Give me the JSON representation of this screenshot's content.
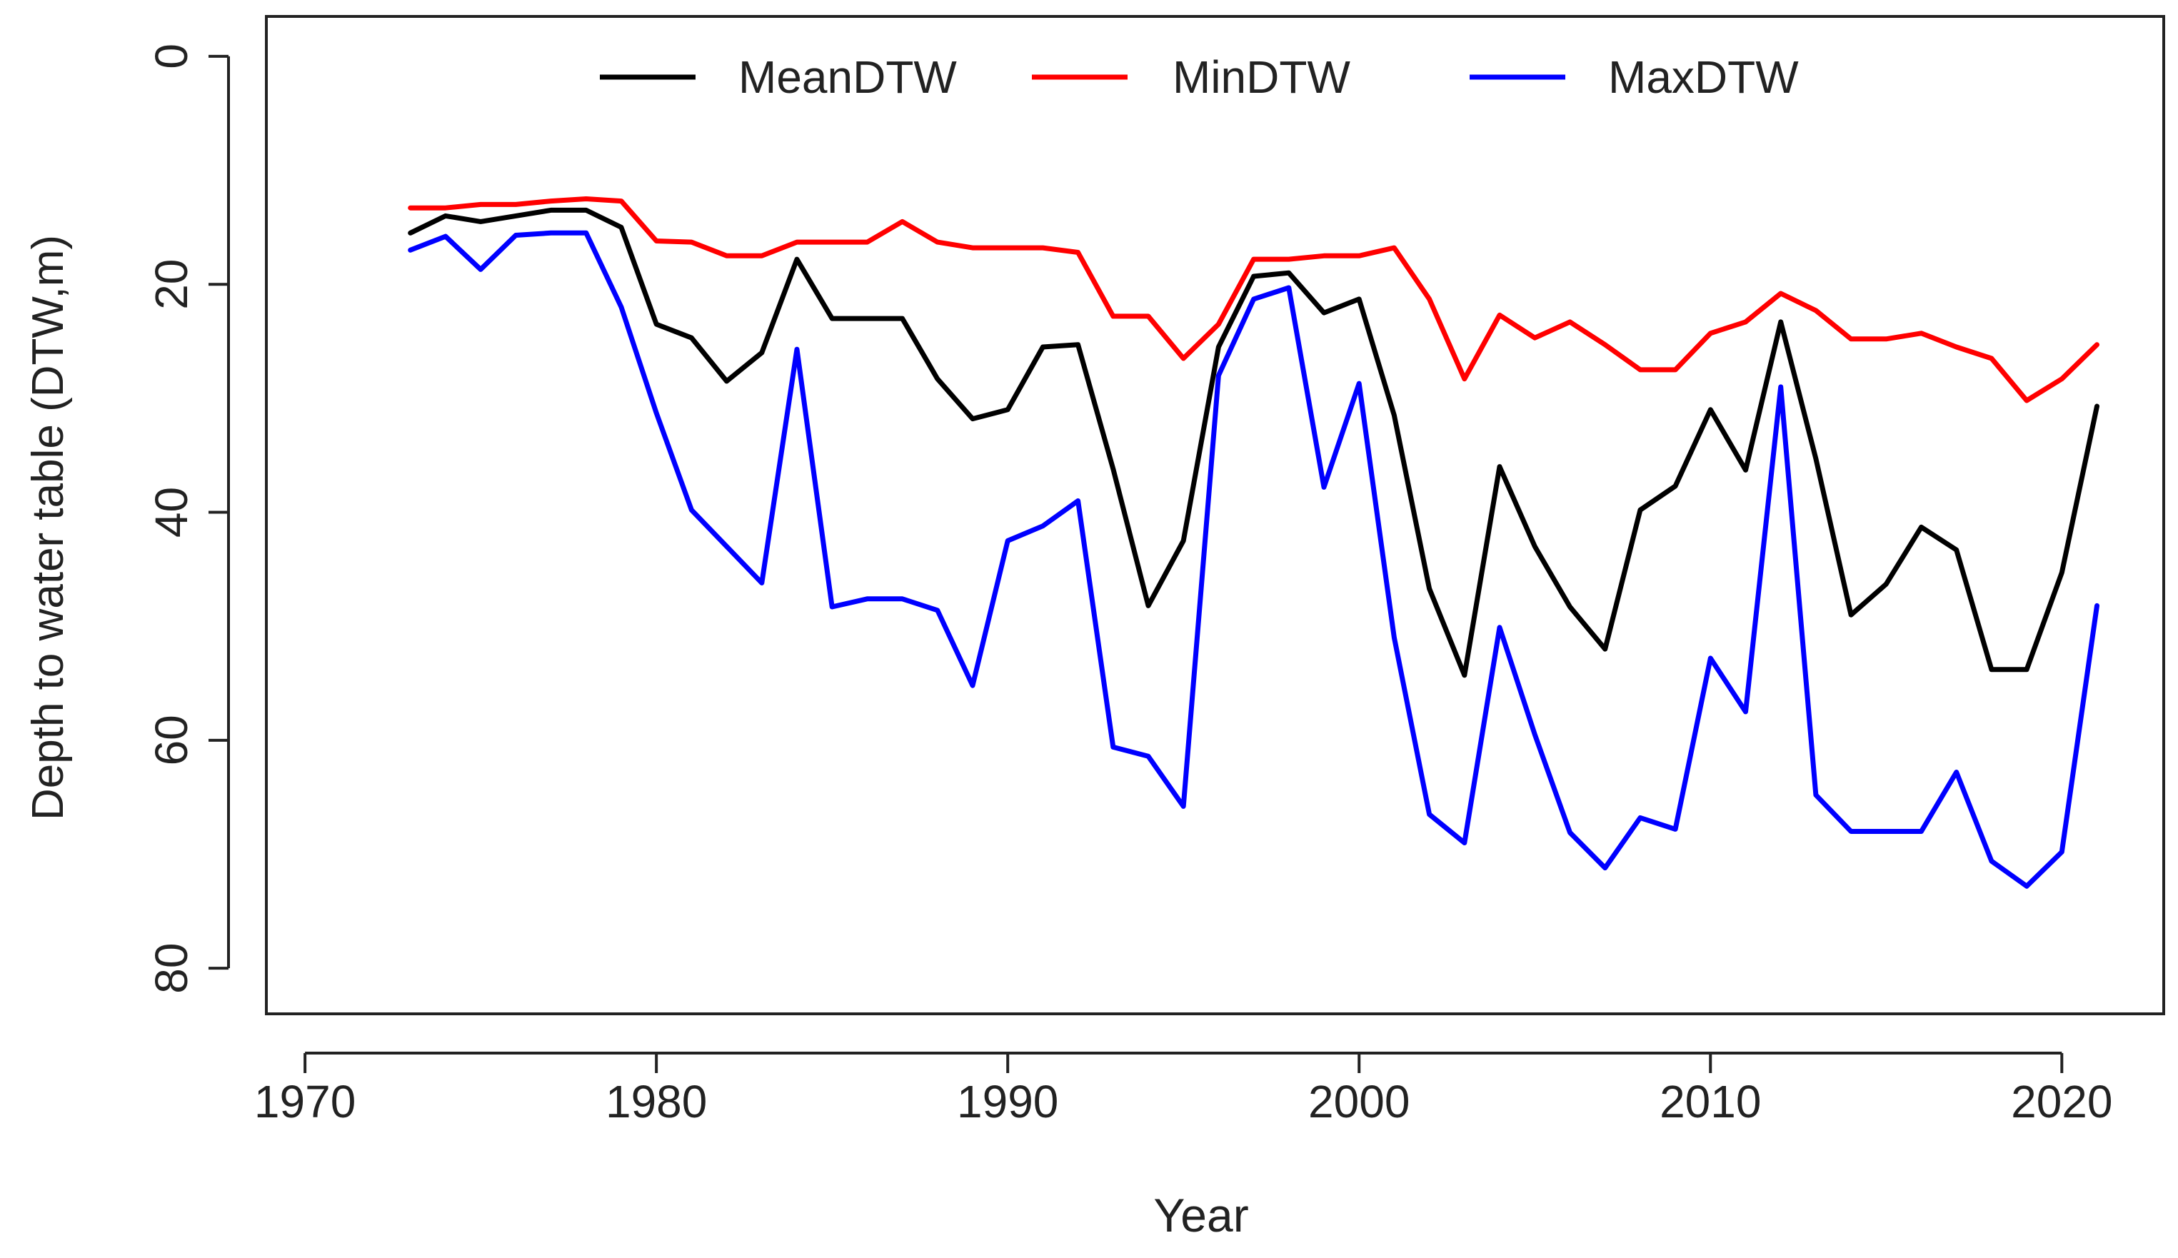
{
  "chart_data": {
    "type": "line",
    "title": "",
    "xlabel": "Year",
    "ylabel": "Depth to water table (DTW,m)",
    "xlim": [
      1968.9,
      2022.9
    ],
    "ylim": [
      84,
      -3.5
    ],
    "y_reversed": true,
    "x_ticks": [
      1970,
      1980,
      1990,
      2000,
      2010,
      2020
    ],
    "y_ticks": [
      0,
      20,
      40,
      60,
      80
    ],
    "grid": false,
    "legend_position": "top",
    "x": [
      1973,
      1974,
      1975,
      1976,
      1977,
      1978,
      1979,
      1980,
      1981,
      1982,
      1983,
      1984,
      1985,
      1986,
      1987,
      1988,
      1989,
      1990,
      1991,
      1992,
      1993,
      1994,
      1995,
      1996,
      1997,
      1998,
      1999,
      2000,
      2001,
      2002,
      2003,
      2004,
      2005,
      2006,
      2007,
      2008,
      2009,
      2010,
      2011,
      2012,
      2013,
      2014,
      2015,
      2016,
      2017,
      2018,
      2019,
      2020,
      2021
    ],
    "series": [
      {
        "name": "MeanDTW",
        "color": "#000000",
        "values": [
          15.5,
          14.0,
          14.5,
          14.0,
          13.5,
          13.5,
          15.0,
          23.5,
          24.7,
          28.5,
          26.0,
          17.8,
          23.0,
          23.0,
          23.0,
          28.3,
          31.8,
          31.0,
          25.5,
          25.3,
          36.2,
          48.2,
          42.5,
          25.5,
          19.3,
          19.0,
          22.5,
          21.3,
          31.5,
          46.7,
          54.3,
          36.0,
          43.0,
          48.3,
          52.0,
          39.8,
          37.7,
          31.0,
          36.3,
          23.3,
          35.3,
          49.0,
          46.3,
          41.3,
          43.3,
          53.8,
          53.8,
          45.3,
          30.7
        ]
      },
      {
        "name": "MinDTW",
        "color": "#ff0000",
        "values": [
          13.3,
          13.3,
          13.0,
          13.0,
          12.7,
          12.5,
          12.7,
          16.2,
          16.3,
          17.5,
          17.5,
          16.3,
          16.3,
          16.3,
          14.5,
          16.3,
          16.8,
          16.8,
          16.8,
          17.2,
          22.8,
          22.8,
          26.5,
          23.5,
          17.8,
          17.8,
          17.5,
          17.5,
          16.8,
          21.3,
          28.3,
          22.7,
          24.7,
          23.3,
          25.3,
          27.5,
          27.5,
          24.3,
          23.3,
          20.8,
          22.3,
          24.8,
          24.8,
          24.3,
          25.5,
          26.5,
          30.2,
          28.3,
          25.3
        ]
      },
      {
        "name": "MaxDTW",
        "color": "#0000ff",
        "values": [
          17.0,
          15.8,
          18.7,
          15.7,
          15.5,
          15.5,
          22.0,
          31.3,
          39.8,
          43.0,
          46.2,
          25.7,
          48.3,
          47.6,
          47.6,
          48.6,
          55.2,
          42.5,
          41.2,
          39.0,
          60.6,
          61.4,
          65.8,
          28.0,
          21.3,
          20.3,
          37.8,
          28.7,
          51.0,
          66.5,
          69.0,
          50.1,
          59.5,
          68.1,
          71.2,
          66.8,
          67.8,
          52.8,
          57.5,
          29.0,
          64.8,
          68.0,
          68.0,
          68.0,
          62.8,
          70.6,
          72.8,
          69.8,
          48.2
        ]
      }
    ]
  }
}
